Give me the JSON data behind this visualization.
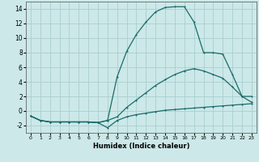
{
  "xlabel": "Humidex (Indice chaleur)",
  "bg_color": "#cce8e8",
  "grid_color": "#aacece",
  "line_color": "#1a6b6b",
  "x_values": [
    0,
    1,
    2,
    3,
    4,
    5,
    6,
    7,
    8,
    9,
    10,
    11,
    12,
    13,
    14,
    15,
    16,
    17,
    18,
    19,
    20,
    21,
    22,
    23
  ],
  "line1": [
    -0.7,
    -1.3,
    -1.5,
    -1.5,
    -1.5,
    -1.5,
    -1.5,
    -1.6,
    -2.3,
    -1.3,
    -0.8,
    -0.5,
    -0.3,
    -0.1,
    0.1,
    0.2,
    0.3,
    0.4,
    0.5,
    0.6,
    0.7,
    0.8,
    0.9,
    1.0
  ],
  "line2": [
    -0.7,
    -1.3,
    -1.5,
    -1.5,
    -1.5,
    -1.5,
    -1.5,
    -1.6,
    -1.3,
    -0.8,
    0.5,
    1.5,
    2.5,
    3.5,
    4.3,
    5.0,
    5.5,
    5.8,
    5.5,
    5.0,
    4.5,
    3.3,
    2.0,
    2.0
  ],
  "line3": [
    -0.7,
    -1.3,
    -1.5,
    -1.5,
    -1.5,
    -1.5,
    -1.5,
    -1.6,
    -1.3,
    4.7,
    8.2,
    10.5,
    12.2,
    13.6,
    14.2,
    14.3,
    14.3,
    12.2,
    8.0,
    8.0,
    7.8,
    5.0,
    2.0,
    1.2
  ],
  "ylim": [
    -3,
    15
  ],
  "xlim": [
    -0.5,
    23.5
  ],
  "yticks": [
    -2,
    0,
    2,
    4,
    6,
    8,
    10,
    12,
    14
  ],
  "xticks": [
    0,
    1,
    2,
    3,
    4,
    5,
    6,
    7,
    8,
    9,
    10,
    11,
    12,
    13,
    14,
    15,
    16,
    17,
    18,
    19,
    20,
    21,
    22,
    23
  ]
}
